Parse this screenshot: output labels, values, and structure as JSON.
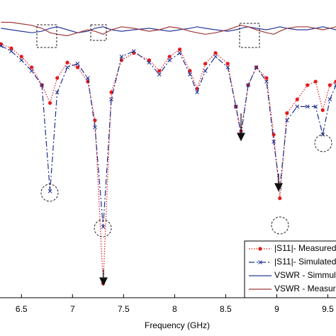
{
  "chart_data": {
    "type": "line",
    "x_label": "Frequency (GHz)",
    "x": [
      6.3,
      6.4,
      6.5,
      6.6,
      6.7,
      6.78,
      6.85,
      6.95,
      7.05,
      7.15,
      7.22,
      7.3,
      7.38,
      7.48,
      7.6,
      7.75,
      7.85,
      7.95,
      8.05,
      8.15,
      8.22,
      8.3,
      8.4,
      8.52,
      8.6,
      8.65,
      8.72,
      8.8,
      8.9,
      8.97,
      9.03,
      9.1,
      9.2,
      9.3,
      9.38,
      9.45,
      9.52,
      9.58
    ],
    "xlim": [
      6.29,
      9.58
    ],
    "xticks": [
      6.5,
      7,
      7.5,
      8,
      8.5,
      9,
      9.5
    ],
    "ylim": [
      -45,
      5
    ],
    "y2lim": [
      0,
      2
    ],
    "legend": "lower right",
    "series": [
      {
        "name": "|S11|- Measured",
        "color": "#e31a1c",
        "style": "dotted",
        "marker": "dot",
        "values": [
          -2.4,
          -3.1,
          -4.5,
          -6.3,
          -9.3,
          -12.3,
          -8.1,
          -5.5,
          -6.3,
          -8.7,
          -15.2,
          -42.6,
          -10.5,
          -5.1,
          -3.9,
          -5.1,
          -6.9,
          -4.5,
          -3.3,
          -6.9,
          -9.9,
          -5.7,
          -3.9,
          -5.7,
          -12.9,
          -17.0,
          -9.3,
          -6.3,
          -8.1,
          -17.6,
          -28.3,
          -14.0,
          -11.7,
          -9.3,
          -8.7,
          -13.5,
          -9.3,
          -8.7
        ]
      },
      {
        "name": "|S11|- Simulated",
        "color": "#1f2f8f",
        "style": "dashdot",
        "marker": "x",
        "values": [
          -2.7,
          -3.6,
          -5.1,
          -6.9,
          -9.3,
          -27.1,
          -10.5,
          -6.3,
          -5.7,
          -8.1,
          -16.4,
          -33.1,
          -11.7,
          -4.5,
          -3.6,
          -5.5,
          -7.5,
          -5.1,
          -3.9,
          -7.5,
          -10.5,
          -6.9,
          -4.5,
          -6.3,
          -12.9,
          -17.6,
          -9.3,
          -6.3,
          -8.7,
          -18.8,
          -26.5,
          -15.2,
          -12.9,
          -12.9,
          -12.9,
          -17.6,
          -11.7,
          -9.3
        ]
      },
      {
        "name": "VSWR - Simmulated",
        "color": "#2b3a9c",
        "style": "solid",
        "axis": "y2",
        "values": [
          1.81,
          1.8,
          1.79,
          1.78,
          1.79,
          1.81,
          1.82,
          1.8,
          1.78,
          1.79,
          1.81,
          1.82,
          1.8,
          1.79,
          1.8,
          1.81,
          1.8,
          1.79,
          1.8,
          1.81,
          1.82,
          1.81,
          1.8,
          1.79,
          1.8,
          1.81,
          1.82,
          1.81,
          1.8,
          1.81,
          1.82,
          1.81,
          1.8,
          1.8,
          1.81,
          1.82,
          1.81,
          1.8
        ]
      },
      {
        "name": "VSWR - Measured",
        "color": "#a0383a",
        "style": "solid",
        "axis": "y2",
        "values": [
          1.85,
          1.85,
          1.84,
          1.83,
          1.81,
          1.78,
          1.77,
          1.76,
          1.78,
          1.8,
          1.79,
          1.77,
          1.8,
          1.82,
          1.81,
          1.79,
          1.8,
          1.82,
          1.81,
          1.79,
          1.78,
          1.77,
          1.78,
          1.8,
          1.82,
          1.83,
          1.82,
          1.8,
          1.78,
          1.77,
          1.79,
          1.81,
          1.82,
          1.82,
          1.81,
          1.8,
          1.81,
          1.82
        ]
      }
    ]
  }
}
